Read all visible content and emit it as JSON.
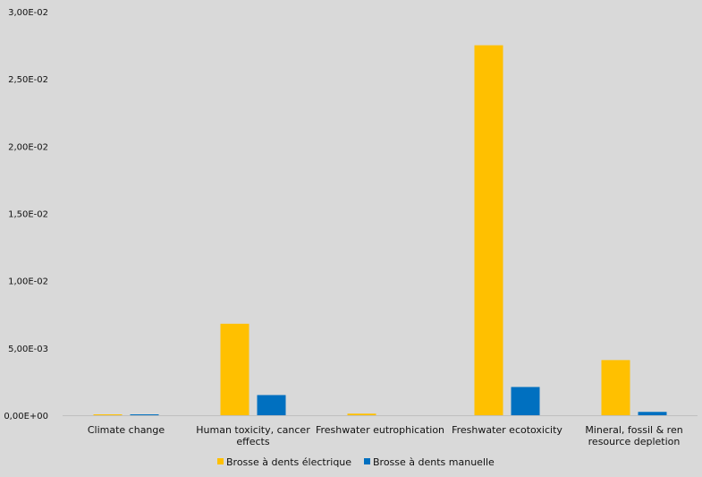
{
  "chart_data": {
    "type": "bar",
    "title": "",
    "xlabel": "",
    "ylabel": "",
    "categories": [
      [
        "Climate change"
      ],
      [
        "Human toxicity, cancer",
        "effects"
      ],
      [
        "Freshwater eutrophication"
      ],
      [
        "Freshwater ecotoxicity"
      ],
      [
        "Mineral, fossil & ren",
        "resource depletion"
      ]
    ],
    "series": [
      {
        "name": "Brosse à dents électrique",
        "color": "#ffc000",
        "values": [
          5e-05,
          0.0068,
          0.00012,
          0.0275,
          0.0041
        ]
      },
      {
        "name": "Brosse à dents manuelle",
        "color": "#0070c0",
        "values": [
          5e-05,
          0.0015,
          0.0,
          0.0021,
          0.00025
        ]
      }
    ],
    "ylim": [
      0,
      0.03
    ],
    "yticks": [
      {
        "value": 0.0,
        "label": "0,00E+00"
      },
      {
        "value": 0.005,
        "label": "5,00E-03"
      },
      {
        "value": 0.01,
        "label": "1,00E-02"
      },
      {
        "value": 0.015,
        "label": "1,50E-02"
      },
      {
        "value": 0.02,
        "label": "2,00E-02"
      },
      {
        "value": 0.025,
        "label": "2,50E-02"
      },
      {
        "value": 0.03,
        "label": "3,00E-02"
      }
    ],
    "grid": false,
    "legend_position": "bottom"
  }
}
